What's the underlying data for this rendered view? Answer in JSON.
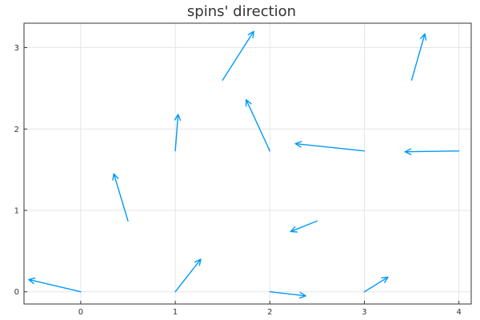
{
  "chart_data": {
    "type": "quiver",
    "title": "spins' direction",
    "xlabel": "",
    "ylabel": "",
    "xlim": [
      -0.6,
      4.13
    ],
    "ylim": [
      -0.15,
      3.3
    ],
    "xticks": [
      0,
      1,
      2,
      3,
      4
    ],
    "yticks": [
      0,
      1,
      2,
      3
    ],
    "xtick_labels": [
      "0",
      "1",
      "2",
      "3",
      "4"
    ],
    "ytick_labels": [
      "0",
      "1",
      "2",
      "3"
    ],
    "grid": true,
    "legend": "none",
    "color": "#009AFA",
    "vectors": [
      {
        "x": 0.0,
        "y": 0.0,
        "dx": -0.55,
        "dy": 0.15
      },
      {
        "x": 1.0,
        "y": 0.0,
        "dx": 0.27,
        "dy": 0.4
      },
      {
        "x": 2.0,
        "y": 0.0,
        "dx": 0.38,
        "dy": -0.05
      },
      {
        "x": 3.0,
        "y": 0.0,
        "dx": 0.25,
        "dy": 0.18
      },
      {
        "x": 0.5,
        "y": 0.87,
        "dx": -0.15,
        "dy": 0.58
      },
      {
        "x": 2.5,
        "y": 0.87,
        "dx": -0.28,
        "dy": -0.13
      },
      {
        "x": 1.0,
        "y": 1.73,
        "dx": 0.03,
        "dy": 0.45
      },
      {
        "x": 2.0,
        "y": 1.73,
        "dx": -0.25,
        "dy": 0.63
      },
      {
        "x": 3.0,
        "y": 1.73,
        "dx": -0.73,
        "dy": 0.09
      },
      {
        "x": 4.0,
        "y": 1.73,
        "dx": -0.57,
        "dy": -0.01
      },
      {
        "x": 1.5,
        "y": 2.6,
        "dx": 0.33,
        "dy": 0.6
      },
      {
        "x": 3.5,
        "y": 2.6,
        "dx": 0.14,
        "dy": 0.57
      }
    ]
  }
}
